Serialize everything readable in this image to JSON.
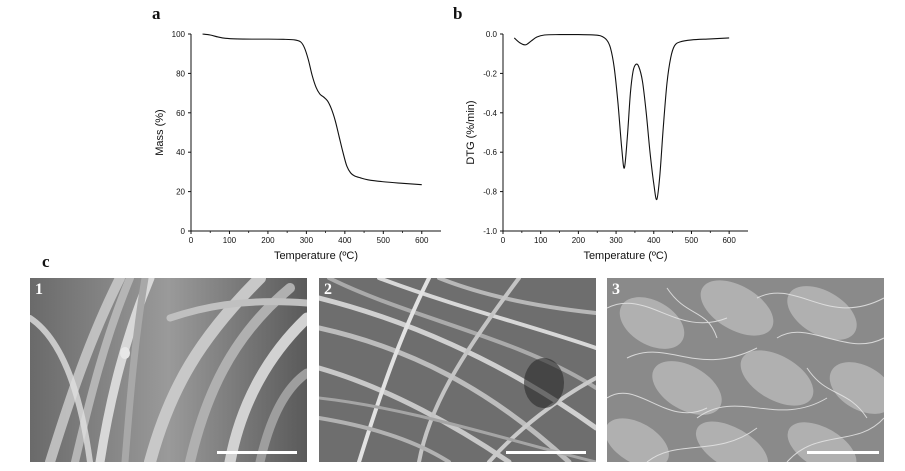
{
  "panels": {
    "a": "a",
    "b": "b",
    "c": "c"
  },
  "chart_data": [
    {
      "type": "line",
      "panel": "a",
      "xlabel": "Temperature (ºC)",
      "ylabel": "Mass (%)",
      "xlim": [
        0,
        650
      ],
      "ylim": [
        0,
        100
      ],
      "xticks": [
        0,
        100,
        200,
        300,
        400,
        500,
        600
      ],
      "yticks": [
        0,
        20,
        40,
        60,
        80,
        100
      ],
      "series": [
        {
          "x": [
            30,
            50,
            70,
            90,
            120,
            160,
            200,
            240,
            270,
            285,
            295,
            305,
            315,
            325,
            335,
            345,
            355,
            365,
            375,
            385,
            395,
            405,
            415,
            425,
            440,
            460,
            500,
            550,
            600
          ],
          "y": [
            100,
            99.5,
            98.5,
            97.8,
            97.5,
            97.4,
            97.4,
            97.3,
            97.0,
            96.0,
            93.0,
            87.0,
            79.0,
            73.0,
            69.5,
            68.0,
            66.0,
            62.0,
            56.0,
            48.0,
            40.0,
            33.0,
            29.5,
            28.0,
            27.0,
            26.0,
            25.0,
            24.2,
            23.5
          ]
        }
      ]
    },
    {
      "type": "line",
      "panel": "b",
      "xlabel": "Temperature (ºC)",
      "ylabel": "DTG (%/min)",
      "xlim": [
        0,
        650
      ],
      "ylim": [
        -1.0,
        0.0
      ],
      "xticks": [
        0,
        100,
        200,
        300,
        400,
        500,
        600
      ],
      "yticks": [
        0.0,
        -0.2,
        -0.4,
        -0.6,
        -0.8,
        -1.0
      ],
      "ytick_labels": [
        "0.0",
        "-0.2",
        "-0.4",
        "-0.6",
        "-0.8",
        "-1.0"
      ],
      "series": [
        {
          "x": [
            30,
            45,
            60,
            75,
            90,
            110,
            150,
            200,
            240,
            260,
            275,
            285,
            295,
            305,
            315,
            322,
            330,
            338,
            345,
            352,
            360,
            370,
            380,
            390,
            400,
            408,
            416,
            425,
            435,
            445,
            455,
            470,
            500,
            550,
            600
          ],
          "y": [
            -0.02,
            -0.045,
            -0.055,
            -0.035,
            -0.015,
            -0.005,
            -0.003,
            -0.003,
            -0.005,
            -0.01,
            -0.03,
            -0.07,
            -0.17,
            -0.35,
            -0.58,
            -0.68,
            -0.52,
            -0.3,
            -0.19,
            -0.155,
            -0.165,
            -0.24,
            -0.4,
            -0.6,
            -0.76,
            -0.84,
            -0.72,
            -0.48,
            -0.25,
            -0.12,
            -0.06,
            -0.04,
            -0.03,
            -0.025,
            -0.02
          ]
        }
      ]
    }
  ],
  "sem_images": [
    {
      "number": "1"
    },
    {
      "number": "2"
    },
    {
      "number": "3"
    }
  ]
}
